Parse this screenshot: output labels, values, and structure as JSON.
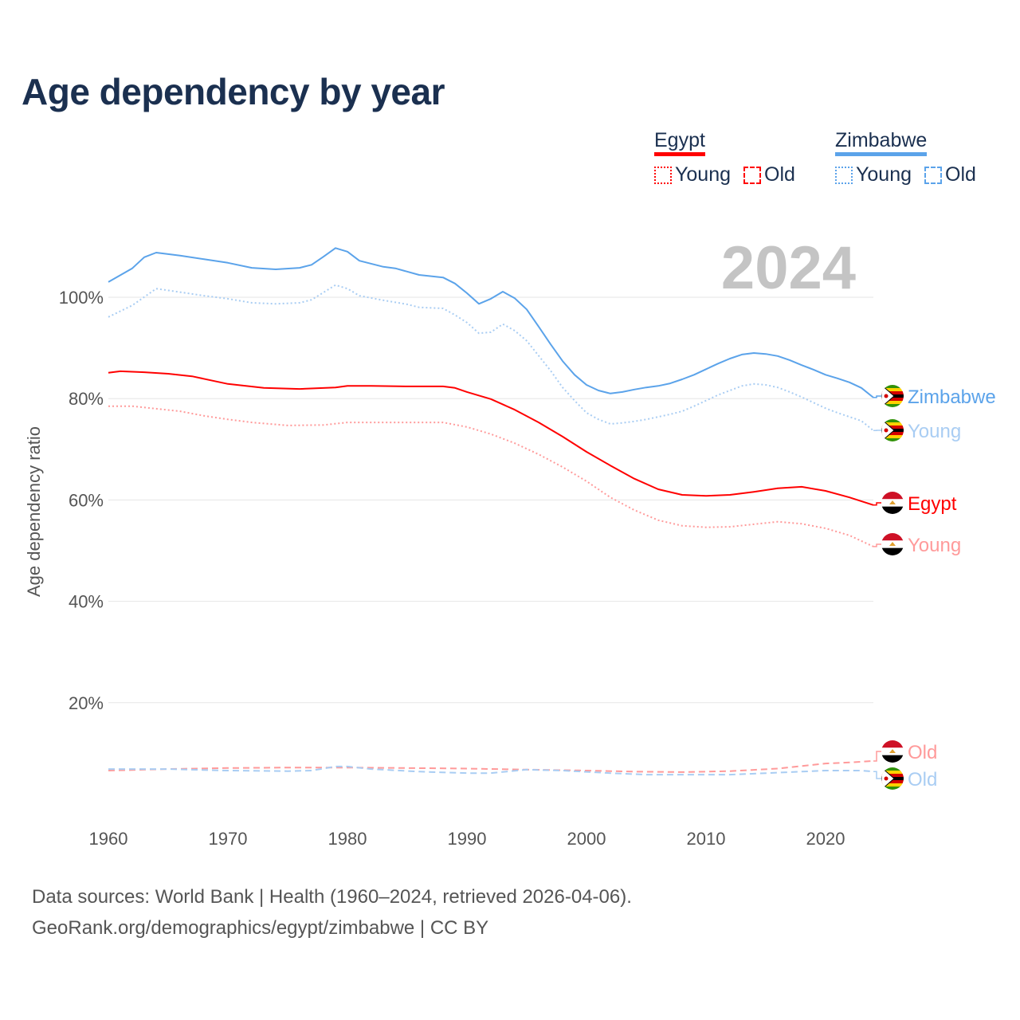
{
  "title": "Age dependency by year",
  "legend": {
    "groups": [
      {
        "name": "Egypt",
        "color": "#ff0000",
        "items": [
          "Young",
          "Old"
        ]
      },
      {
        "name": "Zimbabwe",
        "color": "#5ba3ea",
        "items": [
          "Young",
          "Old"
        ]
      }
    ]
  },
  "source": {
    "line1": "Data sources: World Bank | Health (1960–2024, retrieved 2026-04-06).",
    "line2": "GeoRank.org/demographics/egypt/zimbabwe | CC BY"
  },
  "chart_data": {
    "type": "line",
    "title": "Age dependency by year",
    "ylabel": "Age dependency ratio",
    "xlabel": "",
    "year_watermark": "2024",
    "xlim": [
      1960,
      2024
    ],
    "ylim": [
      0,
      115
    ],
    "xticks": [
      1960,
      1970,
      1980,
      1990,
      2000,
      2010,
      2020
    ],
    "yticks": [
      20,
      40,
      60,
      80,
      100
    ],
    "ytick_labels": [
      "20%",
      "40%",
      "60%",
      "80%",
      "100%"
    ],
    "grid": true,
    "legend_position": "top-right",
    "series": [
      {
        "name": "Zimbabwe",
        "end_label": "Zimbabwe",
        "country": "Zimbabwe",
        "style": "solid",
        "color": "#5ba3ea",
        "x": [
          1960,
          1962,
          1963,
          1964,
          1966,
          1968,
          1970,
          1972,
          1974,
          1976,
          1977,
          1978,
          1979,
          1980,
          1981,
          1983,
          1984,
          1986,
          1988,
          1989,
          1990,
          1991,
          1992,
          1993,
          1994,
          1995,
          1996,
          1997,
          1998,
          1999,
          2000,
          2001,
          2002,
          2003,
          2004,
          2005,
          2006,
          2007,
          2008,
          2009,
          2010,
          2011,
          2012,
          2013,
          2014,
          2015,
          2016,
          2017,
          2018,
          2019,
          2020,
          2021,
          2022,
          2023,
          2024
        ],
        "y": [
          103,
          105.7,
          107.9,
          108.8,
          108.2,
          107.5,
          106.8,
          105.8,
          105.5,
          105.8,
          106.4,
          108,
          109.7,
          109,
          107.2,
          106,
          105.7,
          104.4,
          103.9,
          102.7,
          100.8,
          98.7,
          99.7,
          101.1,
          99.8,
          97.6,
          94.2,
          90.7,
          87.4,
          84.7,
          82.7,
          81.6,
          81,
          81.3,
          81.8,
          82.2,
          82.5,
          83,
          83.8,
          84.7,
          85.8,
          86.9,
          87.9,
          88.7,
          89,
          88.8,
          88.4,
          87.6,
          86.6,
          85.7,
          84.7,
          84,
          83.2,
          82.1,
          80.2
        ]
      },
      {
        "name": "Zimbabwe Young",
        "end_label": "Young",
        "country": "Zimbabwe",
        "style": "dotted",
        "color": "#a9cdf3",
        "x": [
          1960,
          1962,
          1964,
          1966,
          1968,
          1970,
          1972,
          1974,
          1976,
          1977,
          1979,
          1980,
          1981,
          1983,
          1985,
          1986,
          1988,
          1989,
          1990,
          1991,
          1992,
          1993,
          1994,
          1995,
          1997,
          1998,
          1999,
          2000,
          2001,
          2002,
          2003,
          2004,
          2005,
          2006,
          2007,
          2008,
          2009,
          2010,
          2011,
          2012,
          2013,
          2014,
          2015,
          2016,
          2017,
          2018,
          2019,
          2020,
          2021,
          2022,
          2023,
          2024
        ],
        "y": [
          96.1,
          98.4,
          101.7,
          101,
          100.3,
          99.7,
          98.9,
          98.7,
          98.9,
          99.5,
          102.4,
          101.7,
          100.3,
          99.4,
          98.6,
          98,
          97.8,
          96.5,
          95,
          92.9,
          93.1,
          94.7,
          93.4,
          91.4,
          85.5,
          82.2,
          79.6,
          77.2,
          75.9,
          75,
          75.2,
          75.5,
          75.9,
          76.4,
          76.9,
          77.5,
          78.5,
          79.6,
          80.7,
          81.6,
          82.5,
          82.9,
          82.7,
          82.2,
          81.3,
          80.3,
          79.2,
          78.1,
          77.2,
          76.4,
          75.6,
          73.7
        ]
      },
      {
        "name": "Egypt",
        "end_label": "Egypt",
        "country": "Egypt",
        "style": "solid",
        "color": "#ff0000",
        "x": [
          1960,
          1961,
          1963,
          1965,
          1967,
          1970,
          1973,
          1976,
          1979,
          1980,
          1982,
          1985,
          1988,
          1989,
          1990,
          1992,
          1994,
          1996,
          1998,
          2000,
          2002,
          2004,
          2006,
          2008,
          2010,
          2012,
          2014,
          2016,
          2018,
          2020,
          2022,
          2024
        ],
        "y": [
          85.1,
          85.4,
          85.2,
          84.9,
          84.4,
          82.9,
          82.1,
          81.9,
          82.2,
          82.5,
          82.5,
          82.4,
          82.4,
          82.1,
          81.3,
          79.9,
          77.8,
          75.3,
          72.5,
          69.5,
          66.8,
          64.2,
          62.1,
          61,
          60.8,
          61,
          61.6,
          62.3,
          62.6,
          61.8,
          60.5,
          59
        ]
      },
      {
        "name": "Egypt Young",
        "end_label": "Young",
        "country": "Egypt",
        "style": "dotted",
        "color": "#ff9a9a",
        "x": [
          1960,
          1962,
          1964,
          1966,
          1968,
          1970,
          1972,
          1975,
          1978,
          1980,
          1984,
          1988,
          1990,
          1992,
          1994,
          1996,
          1998,
          2000,
          2002,
          2004,
          2006,
          2008,
          2010,
          2012,
          2014,
          2016,
          2018,
          2020,
          2022,
          2024
        ],
        "y": [
          78.5,
          78.5,
          78,
          77.5,
          76.6,
          75.9,
          75.3,
          74.7,
          74.8,
          75.3,
          75.3,
          75.3,
          74.4,
          73,
          71.2,
          69,
          66.5,
          63.7,
          60.5,
          58,
          56,
          54.9,
          54.6,
          54.7,
          55.2,
          55.7,
          55.3,
          54.4,
          53,
          50.8
        ]
      },
      {
        "name": "Egypt Old",
        "end_label": "Old",
        "country": "Egypt",
        "style": "dashed",
        "color": "#ff9a9a",
        "x": [
          1960,
          1965,
          1970,
          1975,
          1980,
          1985,
          1990,
          1995,
          2000,
          2004,
          2008,
          2012,
          2016,
          2020,
          2022,
          2024
        ],
        "y": [
          6.6,
          6.9,
          7.1,
          7.2,
          7.2,
          7.1,
          7.0,
          6.8,
          6.6,
          6.4,
          6.3,
          6.5,
          7.0,
          8.0,
          8.2,
          8.5
        ]
      },
      {
        "name": "Zimbabwe Old",
        "end_label": "Old",
        "country": "Zimbabwe",
        "style": "dashed",
        "color": "#a9cdf3",
        "x": [
          1960,
          1965,
          1970,
          1975,
          1977,
          1979,
          1980,
          1982,
          1986,
          1990,
          1992,
          1995,
          1998,
          2002,
          2005,
          2008,
          2012,
          2016,
          2020,
          2023,
          2024
        ],
        "y": [
          6.9,
          6.9,
          6.6,
          6.5,
          6.6,
          7.4,
          7.4,
          6.9,
          6.4,
          6.1,
          6.1,
          6.8,
          6.6,
          6.1,
          5.8,
          5.8,
          5.8,
          6.2,
          6.6,
          6.6,
          6.4
        ]
      }
    ]
  }
}
